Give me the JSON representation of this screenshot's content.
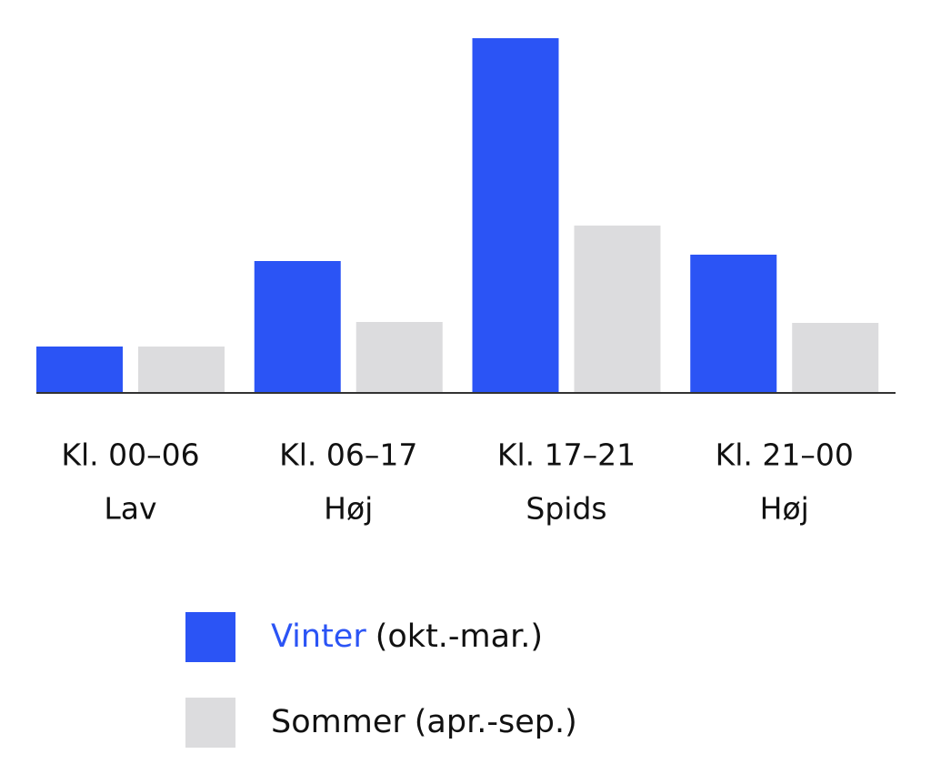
{
  "chart_data": {
    "type": "bar",
    "categories": [
      "Kl. 00–06",
      "Kl. 06–17",
      "Kl. 17–21",
      "Kl. 21–00"
    ],
    "category_levels": [
      "Lav",
      "Høj",
      "Spids",
      "Høj"
    ],
    "series": [
      {
        "name": "Vinter",
        "period": "(okt.-mar.)",
        "color": "#2b54f5",
        "values": [
          51,
          145,
          390,
          152
        ]
      },
      {
        "name": "Sommer",
        "period": "(apr.-sep.)",
        "color": "#dcdcde",
        "values": [
          51,
          78,
          184,
          77
        ]
      }
    ],
    "ylim": [
      0,
      390
    ],
    "name_colored": [
      true,
      false
    ]
  }
}
